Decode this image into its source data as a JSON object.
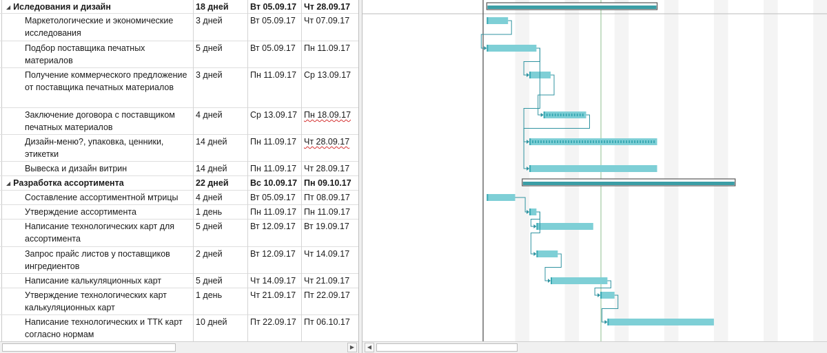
{
  "tasks": [
    {
      "name": "Иследования и дизайн",
      "duration": "18 дней",
      "start": "Вт 05.09.17",
      "end": "Чт 28.09.17",
      "summary": true,
      "bar_start": "2017-09-05",
      "bar_end": "2017-09-28"
    },
    {
      "name": "Маркетологические  и экономические исследования",
      "duration": "3 дней",
      "start": "Вт 05.09.17",
      "end": "Чт 07.09.17",
      "summary": false,
      "bar_start": "2017-09-05",
      "bar_end": "2017-09-07"
    },
    {
      "name": "Подбор поставщика печатных материалов",
      "duration": "5 дней",
      "start": "Вт 05.09.17",
      "end": "Пн 11.09.17",
      "summary": false,
      "bar_start": "2017-09-05",
      "bar_end": "2017-09-11"
    },
    {
      "name": "Получение коммерческого предложение от поставщика печатных материалов",
      "duration": "3 дней",
      "start": "Пн 11.09.17",
      "end": "Ср 13.09.17",
      "summary": false,
      "bar_start": "2017-09-11",
      "bar_end": "2017-09-13"
    },
    {
      "name": "Заключение договора с поставщиком печатных материалов",
      "duration": "4 дней",
      "start": "Ср 13.09.17",
      "end": "Пн 18.09.17",
      "summary": false,
      "squiggle_end": true,
      "dashed": true,
      "bar_start": "2017-09-13",
      "bar_end": "2017-09-18"
    },
    {
      "name": "Дизайн-меню?, упаковка, ценники, этикетки",
      "duration": "14 дней",
      "start": "Пн 11.09.17",
      "end": "Чт 28.09.17",
      "summary": false,
      "squiggle_end": true,
      "dashed": true,
      "bar_start": "2017-09-11",
      "bar_end": "2017-09-28"
    },
    {
      "name": "Вывеска и дизайн витрин",
      "duration": "14 дней",
      "start": "Пн 11.09.17",
      "end": "Чт 28.09.17",
      "summary": false,
      "bar_start": "2017-09-11",
      "bar_end": "2017-09-28"
    },
    {
      "name": "Разработка ассортимента",
      "duration": "22 дней",
      "start": "Вс 10.09.17",
      "end": "Пн 09.10.17",
      "summary": true,
      "bar_start": "2017-09-10",
      "bar_end": "2017-10-09"
    },
    {
      "name": "Составление ассортиментной мтрицы",
      "duration": "4 дней",
      "start": "Вт 05.09.17",
      "end": "Пт 08.09.17",
      "summary": false,
      "bar_start": "2017-09-05",
      "bar_end": "2017-09-08"
    },
    {
      "name": "Утверждение ассортимента",
      "duration": "1 день",
      "start": "Пн 11.09.17",
      "end": "Пн 11.09.17",
      "summary": false,
      "bar_start": "2017-09-11",
      "bar_end": "2017-09-11"
    },
    {
      "name": "Написание технологических карт для ассортимента",
      "duration": "5 дней",
      "start": "Вт 12.09.17",
      "end": "Вт 19.09.17",
      "summary": false,
      "bar_start": "2017-09-12",
      "bar_end": "2017-09-19"
    },
    {
      "name": "Запрос прайс листов у поставщиков ингредиентов",
      "duration": "2 дней",
      "start": "Вт 12.09.17",
      "end": "Чт 14.09.17",
      "summary": false,
      "bar_start": "2017-09-12",
      "bar_end": "2017-09-14"
    },
    {
      "name": "Написание калькуляционных карт",
      "duration": "5 дней",
      "start": "Чт 14.09.17",
      "end": "Чт 21.09.17",
      "summary": false,
      "bar_start": "2017-09-14",
      "bar_end": "2017-09-21"
    },
    {
      "name": "Утверждение технологических карт калькуляционных карт",
      "duration": "1 день",
      "start": "Чт 21.09.17",
      "end": "Пт 22.09.17",
      "summary": false,
      "bar_start": "2017-09-21",
      "bar_end": "2017-09-22"
    },
    {
      "name": "Написание технологических и ТТК карт согласно нормам",
      "duration": "10 дней",
      "start": "Пт 22.09.17",
      "end": "Пт 06.10.17",
      "summary": false,
      "bar_start": "2017-09-22",
      "bar_end": "2017-10-06"
    }
  ],
  "dependencies": [
    [
      1,
      2
    ],
    [
      2,
      3
    ],
    [
      3,
      4
    ],
    [
      4,
      5
    ],
    [
      2,
      6
    ],
    [
      8,
      9
    ],
    [
      9,
      10
    ],
    [
      9,
      11
    ],
    [
      11,
      12
    ],
    [
      12,
      13
    ],
    [
      13,
      14
    ]
  ],
  "colors": {
    "task_bar": "#7ecfd6",
    "task_bar_edge": "#3aa9b3",
    "summary_bar": "#3b9ea6",
    "link": "#2f93a0",
    "weekend": "#f4f4f4",
    "today": "#8fbf8f"
  }
}
